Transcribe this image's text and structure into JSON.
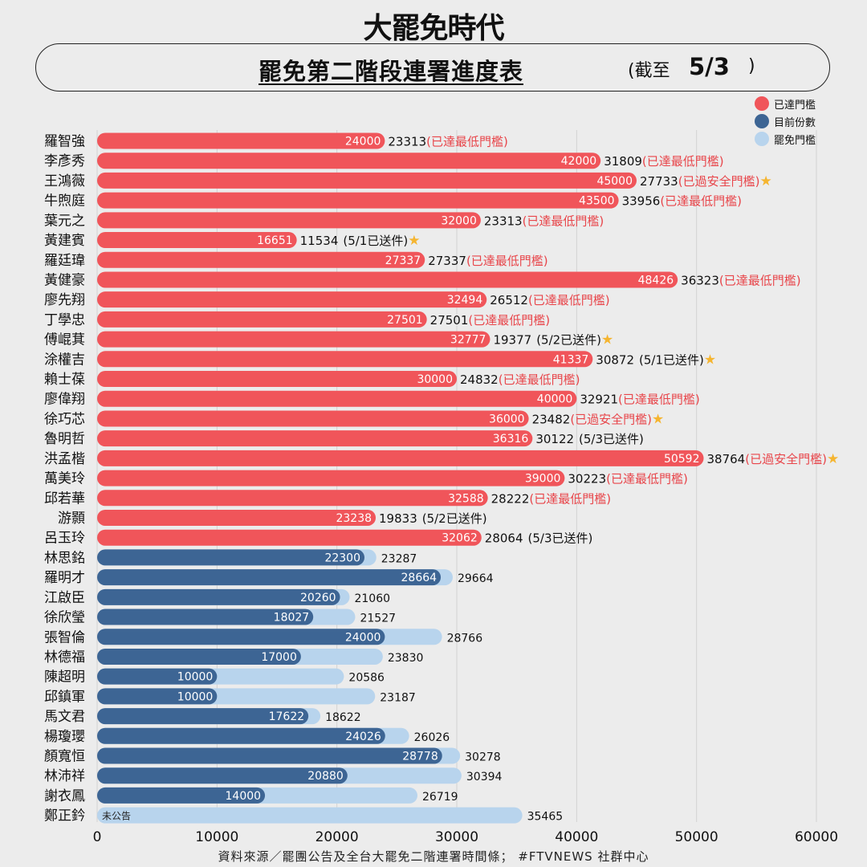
{
  "header": {
    "brand": "大罷免時代",
    "title": "罷免第二階段連署進度表",
    "asof_label": "(截至",
    "asof_date": "5/3",
    "asof_close": ")"
  },
  "legend": [
    {
      "label": "已達門檻",
      "color": "#f0555a"
    },
    {
      "label": "目前份數",
      "color": "#3d6594"
    },
    {
      "label": "罷免門檻",
      "color": "#b8d4ed"
    }
  ],
  "colors": {
    "reached": "#f0555a",
    "current": "#3d6594",
    "threshold": "#b8d4ed",
    "note": "#e8454a",
    "star": "#f5b530"
  },
  "source": "資料來源／罷團公告及全台大罷免二階連署時間條； #FTVNEWS 社群中心",
  "chart_data": {
    "type": "bar",
    "orientation": "horizontal",
    "xlim": [
      0,
      60000
    ],
    "xticks": [
      0,
      10000,
      20000,
      30000,
      40000,
      50000,
      60000
    ],
    "grid": true,
    "legend_position": "top-right",
    "rows": [
      {
        "name": "羅智強",
        "current": 24000,
        "threshold": 23313,
        "status": "reached",
        "note": "(已達最低門檻)",
        "star": false
      },
      {
        "name": "李彥秀",
        "current": 42000,
        "threshold": 31809,
        "status": "reached",
        "note": "(已達最低門檻)",
        "star": false
      },
      {
        "name": "王鴻薇",
        "current": 45000,
        "threshold": 27733,
        "status": "reached",
        "note": "(已過安全門檻)",
        "star": true
      },
      {
        "name": "牛煦庭",
        "current": 43500,
        "threshold": 33956,
        "status": "reached",
        "note": "(已達最低門檻)",
        "star": false
      },
      {
        "name": "葉元之",
        "current": 32000,
        "threshold": 23313,
        "status": "reached",
        "note": "(已達最低門檻)",
        "star": false
      },
      {
        "name": "黃建賓",
        "current": 16651,
        "threshold": 11534,
        "status": "reached",
        "note": "(5/1已送件)",
        "star": true
      },
      {
        "name": "羅廷瑋",
        "current": 27337,
        "threshold": 27337,
        "status": "reached",
        "note": "(已達最低門檻)",
        "star": false
      },
      {
        "name": "黃健豪",
        "current": 48426,
        "threshold": 36323,
        "status": "reached",
        "note": "(已達最低門檻)",
        "star": false
      },
      {
        "name": "廖先翔",
        "current": 32494,
        "threshold": 26512,
        "status": "reached",
        "note": "(已達最低門檻)",
        "star": false
      },
      {
        "name": "丁學忠",
        "current": 27501,
        "threshold": 27501,
        "status": "reached",
        "note": "(已達最低門檻)",
        "star": false
      },
      {
        "name": "傅崐萁",
        "current": 32777,
        "threshold": 19377,
        "status": "reached",
        "note": "(5/2已送件)",
        "star": true
      },
      {
        "name": "涂權吉",
        "current": 41337,
        "threshold": 30872,
        "status": "reached",
        "note": "(5/1已送件)",
        "star": true
      },
      {
        "name": "賴士葆",
        "current": 30000,
        "threshold": 24832,
        "status": "reached",
        "note": "(已達最低門檻)",
        "star": false
      },
      {
        "name": "廖偉翔",
        "current": 40000,
        "threshold": 32921,
        "status": "reached",
        "note": "(已達最低門檻)",
        "star": false
      },
      {
        "name": "徐巧芯",
        "current": 36000,
        "threshold": 23482,
        "status": "reached",
        "note": "(已過安全門檻)",
        "star": true
      },
      {
        "name": "魯明哲",
        "current": 36316,
        "threshold": 30122,
        "status": "reached",
        "note": "(5/3已送件)",
        "star": false
      },
      {
        "name": "洪孟楷",
        "current": 50592,
        "threshold": 38764,
        "status": "reached",
        "note": "(已過安全門檻)",
        "star": true
      },
      {
        "name": "萬美玲",
        "current": 39000,
        "threshold": 30223,
        "status": "reached",
        "note": "(已達最低門檻)",
        "star": false
      },
      {
        "name": "邱若華",
        "current": 32588,
        "threshold": 28222,
        "status": "reached",
        "note": "(已達最低門檻)",
        "star": false
      },
      {
        "name": "游顥",
        "current": 23238,
        "threshold": 19833,
        "status": "reached",
        "note": "(5/2已送件)",
        "star": false
      },
      {
        "name": "呂玉玲",
        "current": 32062,
        "threshold": 28064,
        "status": "reached",
        "note": "(5/3已送件)",
        "star": false
      },
      {
        "name": "林思銘",
        "current": 22300,
        "threshold": 23287,
        "status": "pending",
        "note": "",
        "star": false
      },
      {
        "name": "羅明才",
        "current": 28664,
        "threshold": 29664,
        "status": "pending",
        "note": "",
        "star": false
      },
      {
        "name": "江啟臣",
        "current": 20260,
        "threshold": 21060,
        "status": "pending",
        "note": "",
        "star": false
      },
      {
        "name": "徐欣瑩",
        "current": 18027,
        "threshold": 21527,
        "status": "pending",
        "note": "",
        "star": false
      },
      {
        "name": "張智倫",
        "current": 24000,
        "threshold": 28766,
        "status": "pending",
        "note": "",
        "star": false
      },
      {
        "name": "林德福",
        "current": 17000,
        "threshold": 23830,
        "status": "pending",
        "note": "",
        "star": false
      },
      {
        "name": "陳超明",
        "current": 10000,
        "threshold": 20586,
        "status": "pending",
        "note": "",
        "star": false
      },
      {
        "name": "邱鎮軍",
        "current": 10000,
        "threshold": 23187,
        "status": "pending",
        "note": "",
        "star": false
      },
      {
        "name": "馬文君",
        "current": 17622,
        "threshold": 18622,
        "status": "pending",
        "note": "",
        "star": false
      },
      {
        "name": "楊瓊瓔",
        "current": 24026,
        "threshold": 26026,
        "status": "pending",
        "note": "",
        "star": false
      },
      {
        "name": "顏寬恒",
        "current": 28778,
        "threshold": 30278,
        "status": "pending",
        "note": "",
        "star": false
      },
      {
        "name": "林沛祥",
        "current": 20880,
        "threshold": 30394,
        "status": "pending",
        "note": "",
        "star": false
      },
      {
        "name": "謝衣鳳",
        "current": 14000,
        "threshold": 26719,
        "status": "pending",
        "note": "",
        "star": false
      },
      {
        "name": "鄭正鈐",
        "current": null,
        "current_label": "未公告",
        "threshold": 35465,
        "status": "pending",
        "note": "",
        "star": false
      }
    ]
  }
}
